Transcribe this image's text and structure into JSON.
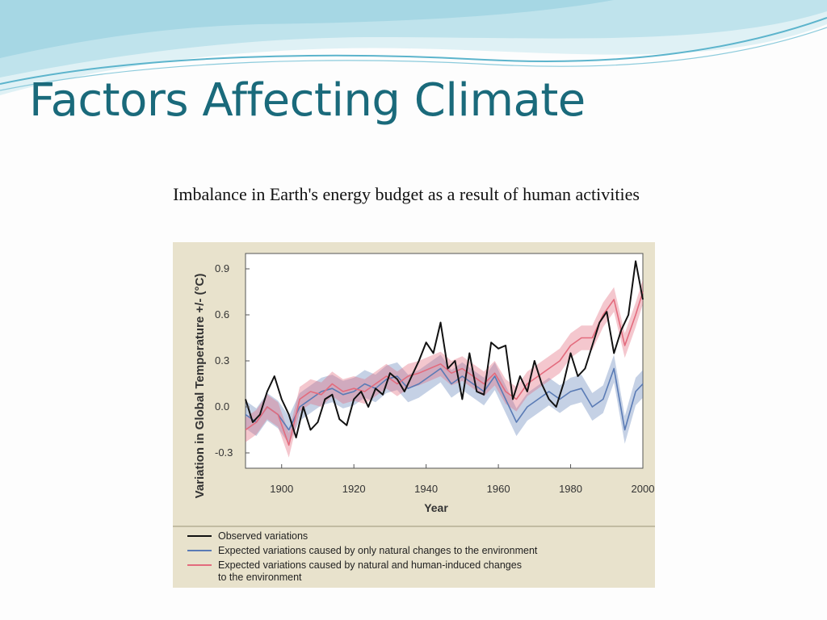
{
  "slide": {
    "title": "Factors Affecting Climate",
    "subtitle": "Imbalance in Earth's energy budget as a result of human activities"
  },
  "chart_data": {
    "type": "line",
    "title": "",
    "xlabel": "Year",
    "ylabel": "Variation in Global Temperature +/- (°C)",
    "xlim": [
      1890,
      2000
    ],
    "ylim": [
      -0.4,
      1.0
    ],
    "xticks": [
      1900,
      1920,
      1940,
      1960,
      1980,
      2000
    ],
    "yticks": [
      -0.3,
      0.0,
      0.3,
      0.6,
      0.9
    ],
    "ytick_labels": [
      "-0.3",
      "0.0",
      "0.3",
      "0.6",
      "0.9"
    ],
    "grid": false,
    "legend_position": "bottom",
    "series": [
      {
        "name": "Observed variations",
        "color": "#111111",
        "x": [
          1890,
          1892,
          1894,
          1896,
          1898,
          1900,
          1902,
          1904,
          1906,
          1908,
          1910,
          1912,
          1914,
          1916,
          1918,
          1920,
          1922,
          1924,
          1926,
          1928,
          1930,
          1932,
          1934,
          1936,
          1938,
          1940,
          1942,
          1944,
          1946,
          1948,
          1950,
          1952,
          1954,
          1956,
          1958,
          1960,
          1962,
          1964,
          1966,
          1968,
          1970,
          1972,
          1974,
          1976,
          1978,
          1980,
          1982,
          1984,
          1986,
          1988,
          1990,
          1992,
          1994,
          1996,
          1998,
          2000
        ],
        "values": [
          0.05,
          -0.1,
          -0.05,
          0.1,
          0.2,
          0.05,
          -0.05,
          -0.2,
          0.0,
          -0.15,
          -0.1,
          0.05,
          0.08,
          -0.08,
          -0.12,
          0.05,
          0.1,
          0.0,
          0.12,
          0.08,
          0.22,
          0.18,
          0.1,
          0.2,
          0.3,
          0.42,
          0.35,
          0.55,
          0.25,
          0.3,
          0.05,
          0.35,
          0.1,
          0.08,
          0.42,
          0.38,
          0.4,
          0.05,
          0.2,
          0.1,
          0.3,
          0.15,
          0.05,
          0.0,
          0.15,
          0.35,
          0.2,
          0.25,
          0.4,
          0.55,
          0.62,
          0.35,
          0.5,
          0.6,
          0.95,
          0.7
        ]
      },
      {
        "name": "Expected variations caused by only natural changes to the environment",
        "color": "#5a7bb5",
        "x": [
          1890,
          1893,
          1896,
          1899,
          1902,
          1905,
          1908,
          1911,
          1914,
          1917,
          1920,
          1923,
          1926,
          1929,
          1932,
          1935,
          1938,
          1941,
          1944,
          1947,
          1950,
          1953,
          1956,
          1959,
          1962,
          1965,
          1968,
          1971,
          1974,
          1977,
          1980,
          1983,
          1986,
          1989,
          1992,
          1995,
          1998,
          2000
        ],
        "values": [
          -0.05,
          -0.1,
          0.0,
          -0.05,
          -0.15,
          0.0,
          0.05,
          0.1,
          0.12,
          0.08,
          0.1,
          0.15,
          0.12,
          0.18,
          0.2,
          0.12,
          0.15,
          0.2,
          0.25,
          0.15,
          0.2,
          0.15,
          0.1,
          0.2,
          0.05,
          -0.1,
          0.0,
          0.05,
          0.1,
          0.05,
          0.1,
          0.12,
          0.0,
          0.05,
          0.25,
          -0.15,
          0.1,
          0.15
        ]
      },
      {
        "name": "Expected variations caused by natural and human-induced changes to the environment",
        "color": "#e36b7d",
        "x": [
          1890,
          1893,
          1896,
          1899,
          1902,
          1905,
          1908,
          1911,
          1914,
          1917,
          1920,
          1923,
          1926,
          1929,
          1932,
          1935,
          1938,
          1941,
          1944,
          1947,
          1950,
          1953,
          1956,
          1959,
          1962,
          1965,
          1968,
          1971,
          1974,
          1977,
          1980,
          1983,
          1986,
          1989,
          1992,
          1995,
          1998,
          2000
        ],
        "values": [
          -0.15,
          -0.1,
          0.0,
          -0.05,
          -0.25,
          0.05,
          0.1,
          0.08,
          0.15,
          0.1,
          0.12,
          0.1,
          0.15,
          0.2,
          0.15,
          0.2,
          0.22,
          0.25,
          0.28,
          0.22,
          0.25,
          0.2,
          0.15,
          0.22,
          0.1,
          0.05,
          0.15,
          0.2,
          0.25,
          0.3,
          0.4,
          0.45,
          0.45,
          0.6,
          0.7,
          0.4,
          0.6,
          0.75
        ]
      }
    ]
  },
  "legend": {
    "items": [
      {
        "line1": "Observed variations",
        "line2": "",
        "color": "#111111"
      },
      {
        "line1": "Expected variations caused by only natural changes to the environment",
        "line2": "",
        "color": "#5a7bb5"
      },
      {
        "line1": "Expected variations caused by natural and human-induced changes",
        "line2": "to the environment",
        "color": "#e36b7d"
      }
    ]
  },
  "colors": {
    "title": "#1a6a7b",
    "figure_background": "#e8e2cc",
    "wave_light": "#bfe3ec",
    "wave_dark": "#5cb4cc"
  }
}
